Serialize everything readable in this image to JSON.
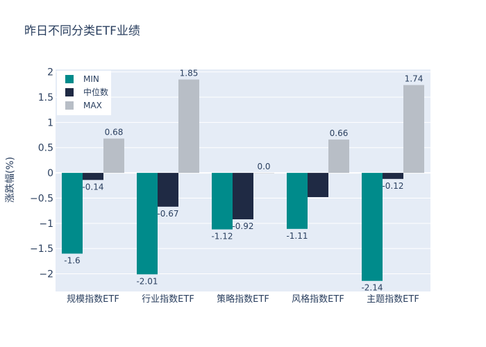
{
  "chart_data": {
    "type": "bar",
    "title": "昨日不同分类ETF业绩",
    "ylabel": "涨跌幅(%)",
    "ylim": [
      -2.35,
      2.05
    ],
    "yticks": [
      -2,
      -1.5,
      -1,
      -0.5,
      0,
      0.5,
      1,
      1.5,
      2
    ],
    "ytick_labels": [
      "−2",
      "−1.5",
      "−1",
      "−0.5",
      "0",
      "0.5",
      "1",
      "1.5",
      "2"
    ],
    "categories": [
      "规模指数ETF",
      "行业指数ETF",
      "策略指数ETF",
      "风格指数ETF",
      "主题指数ETF"
    ],
    "series": [
      {
        "name": "MIN",
        "color": "#008b8b",
        "values": [
          -1.6,
          -2.01,
          -1.12,
          -1.11,
          -2.14
        ],
        "labels": [
          "-1.6",
          "-2.01",
          "-1.12",
          "-1.11",
          "-2.14"
        ]
      },
      {
        "name": "中位数",
        "color": "#1f2a44",
        "values": [
          -0.14,
          -0.67,
          -0.92,
          -0.48,
          -0.12
        ],
        "labels": [
          "-0.14",
          "-0.67",
          "-0.92",
          "",
          "-0.12"
        ]
      },
      {
        "name": "MAX",
        "color": "#b8bec6",
        "values": [
          0.68,
          1.85,
          0.0,
          0.66,
          1.74
        ],
        "labels": [
          "0.68",
          "1.85",
          "0.0",
          "0.66",
          "1.74"
        ]
      }
    ],
    "legend": "top-left",
    "grid": true
  }
}
